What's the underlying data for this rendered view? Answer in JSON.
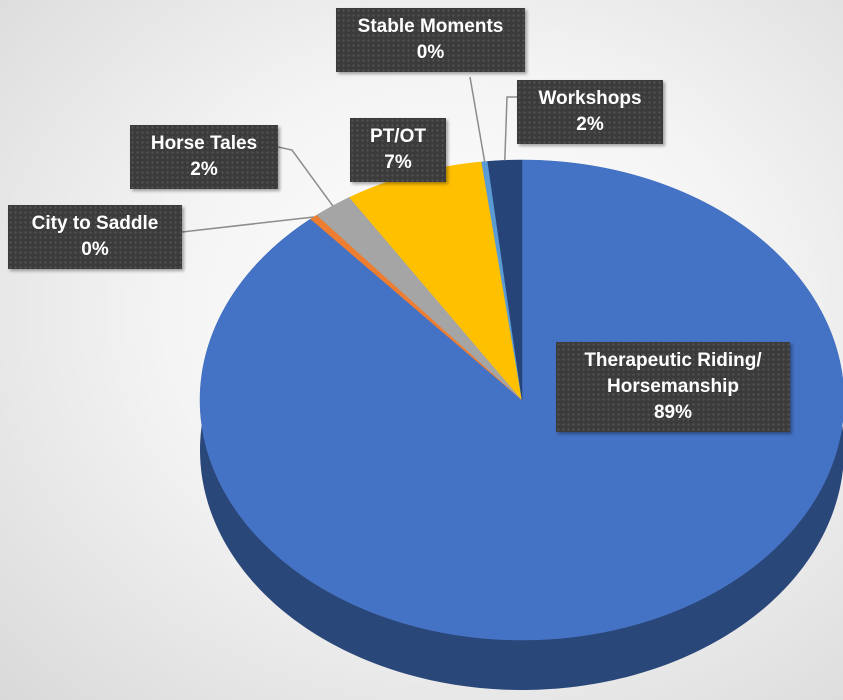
{
  "chart_data": {
    "type": "pie",
    "categories": [
      "Therapeutic Riding/ Horsemanship",
      "City to Saddle",
      "Horse Tales",
      "PT/OT",
      "Stable Moments",
      "Workshops"
    ],
    "values": [
      88.6,
      0.4,
      2,
      7,
      0.3,
      1.7
    ],
    "value_labels": [
      "89%",
      "0%",
      "2%",
      "7%",
      "0%",
      "2%"
    ],
    "colors": [
      "#4472c4",
      "#ed7d31",
      "#a5a5a5",
      "#ffc000",
      "#5b9bd5",
      "#264478"
    ]
  }
}
